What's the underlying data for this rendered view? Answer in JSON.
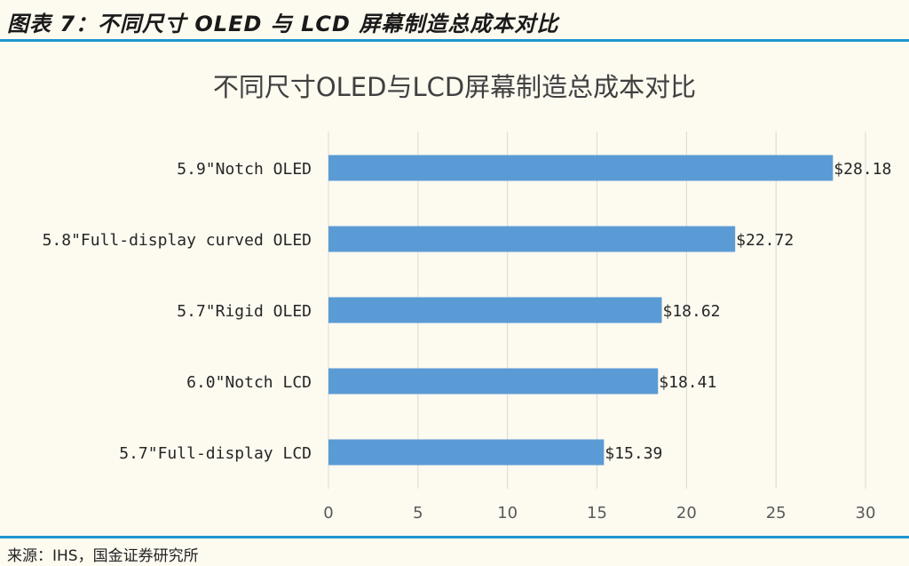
{
  "figure": {
    "label": "图表 7：不同尺寸 OLED 与 LCD 屏幕制造总成本对比",
    "source": "来源：IHS，国金证券研究所"
  },
  "colors": {
    "bar": "#5b9bd5",
    "rule": "#1e96cf",
    "grid": "#d9d9d9",
    "background": "#fdfaf0"
  },
  "chart_data": {
    "type": "bar",
    "orientation": "horizontal",
    "title": "不同尺寸OLED与LCD屏幕制造总成本对比",
    "categories": [
      "5.9\"Notch OLED",
      "5.8\"Full-display curved OLED",
      "5.7\"Rigid OLED",
      "6.0\"Notch LCD",
      "5.7\"Full-display LCD"
    ],
    "values": [
      28.18,
      22.72,
      18.62,
      18.41,
      15.39
    ],
    "data_labels": [
      "$28.18",
      "$22.72",
      "$18.62",
      "$18.41",
      "$15.39"
    ],
    "xlim": [
      0,
      30
    ],
    "xticks": [
      0,
      5,
      10,
      15,
      20,
      25,
      30
    ],
    "grid": true,
    "legend": "none"
  }
}
